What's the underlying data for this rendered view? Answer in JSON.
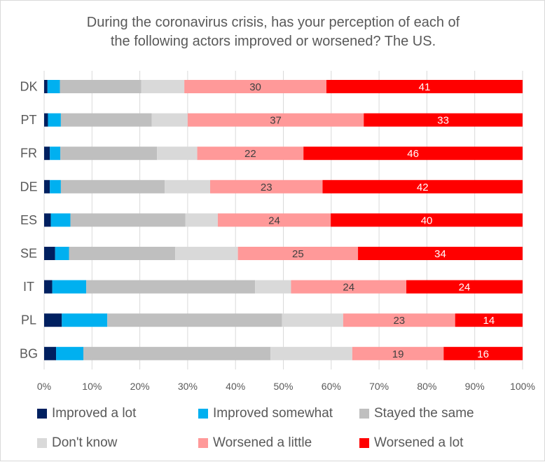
{
  "chart_data": {
    "type": "bar",
    "orientation": "horizontal",
    "stacked": "percent",
    "title": "During the coronavirus crisis, has your perception of each of the following actors improved or worsened? The US.",
    "title_lines": [
      "During the coronavirus crisis, has your perception of each of",
      "the following actors improved or worsened? The US."
    ],
    "categories": [
      "DK",
      "PT",
      "FR",
      "DE",
      "ES",
      "SE",
      "IT",
      "PL",
      "BG"
    ],
    "xlim": [
      0,
      100
    ],
    "xticks": [
      "0%",
      "10%",
      "20%",
      "30%",
      "40%",
      "50%",
      "60%",
      "70%",
      "80%",
      "90%",
      "100%"
    ],
    "grid": "vertical gridlines",
    "legend_position": "bottom",
    "series": [
      {
        "name": "Improved a lot",
        "color": "#002060",
        "values": [
          0.7,
          0.8,
          1.2,
          1.2,
          1.4,
          2.3,
          1.7,
          3.7,
          2.5
        ],
        "labels": [
          "",
          "",
          "",
          "",
          "",
          "",
          "",
          "",
          ""
        ]
      },
      {
        "name": "Improved somewhat",
        "color": "#00b0f0",
        "values": [
          2.6,
          2.7,
          2.2,
          2.3,
          4.1,
          2.9,
          7.1,
          9.5,
          5.7
        ],
        "labels": [
          "",
          "",
          "",
          "",
          "",
          "",
          "",
          "",
          ""
        ]
      },
      {
        "name": "Stayed the same",
        "color": "#bfbfbf",
        "values": [
          17,
          19,
          20.2,
          21.7,
          24,
          22.2,
          35.3,
          36.5,
          39.1
        ],
        "labels": [
          "",
          "",
          "",
          "",
          "",
          "",
          "",
          "",
          ""
        ]
      },
      {
        "name": "Don't know",
        "color": "#d9d9d9",
        "values": [
          9,
          7.5,
          8.4,
          9.5,
          6.8,
          13.1,
          7.5,
          12.8,
          17.1
        ],
        "labels": [
          "",
          "",
          "",
          "",
          "",
          "",
          "",
          "",
          ""
        ]
      },
      {
        "name": "Worsened a little",
        "color": "#ff9999",
        "values": [
          29.7,
          36.8,
          22.2,
          23.5,
          23.6,
          25.1,
          24.1,
          23.4,
          19.1
        ],
        "labels": [
          "30",
          "37",
          "22",
          "23",
          "24",
          "25",
          "24",
          "23",
          "19"
        ]
      },
      {
        "name": "Worsened a lot",
        "color": "#ff0000",
        "values": [
          41,
          33.2,
          45.8,
          41.8,
          40.1,
          34.4,
          24.3,
          14.1,
          16.5
        ],
        "labels": [
          "41",
          "33",
          "46",
          "42",
          "40",
          "34",
          "24",
          "14",
          "16"
        ]
      }
    ]
  }
}
